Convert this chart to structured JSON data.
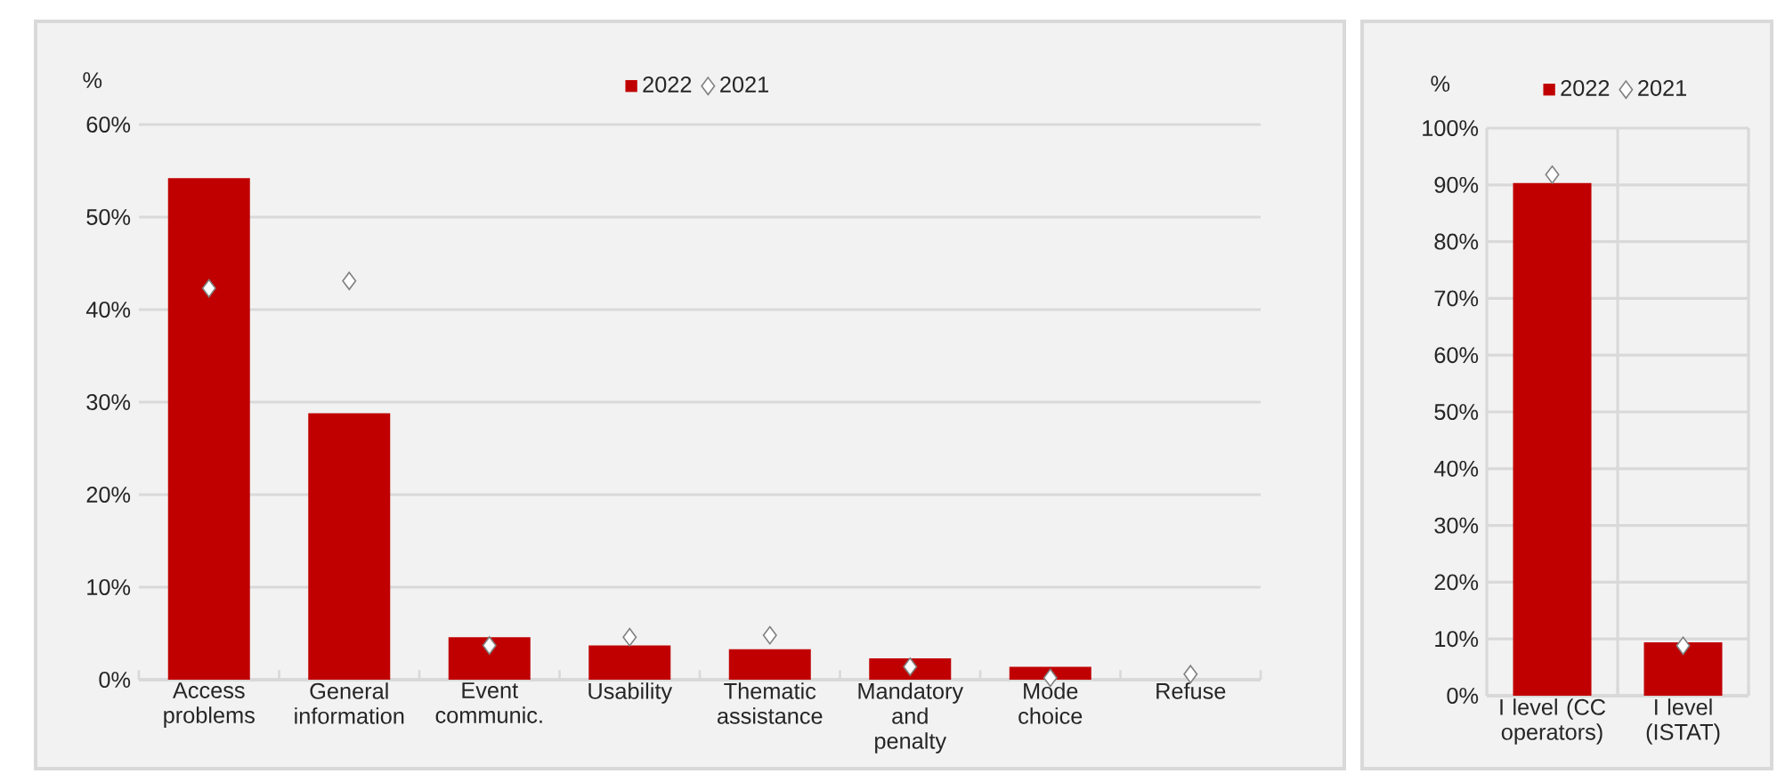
{
  "chart_data": [
    {
      "type": "bar",
      "ylabel": "%",
      "categories": [
        "Access problems",
        "General information",
        "Event communic.",
        "Usability",
        "Thematic assistance",
        "Mandatory and penalty",
        "Mode choice",
        "Refuse"
      ],
      "series": [
        {
          "name": "2022",
          "color": "#c00000",
          "values": [
            54.2,
            28.8,
            4.6,
            3.7,
            3.3,
            2.3,
            1.4,
            0
          ]
        },
        {
          "name": "2021",
          "type": "scatter",
          "color": "#ffffff",
          "values": [
            42.3,
            43.1,
            3.7,
            4.6,
            4.8,
            1.4,
            0.2,
            0.6
          ]
        }
      ],
      "marker": "diamond",
      "ylim": [
        0,
        60
      ],
      "yticks": [
        {
          "value": 0,
          "label": "0%"
        },
        {
          "value": 10,
          "label": "10%"
        },
        {
          "value": 20,
          "label": "20%"
        },
        {
          "value": 30,
          "label": "30%"
        },
        {
          "value": 40,
          "label": "40%"
        },
        {
          "value": 50,
          "label": "50%"
        },
        {
          "value": 60,
          "label": "60%"
        }
      ],
      "grid": "y",
      "legend": "top"
    },
    {
      "type": "bar",
      "ylabel": "%",
      "categories": [
        "I level (CC operators)",
        "I level (ISTAT)"
      ],
      "series": [
        {
          "name": "2022",
          "color": "#c00000",
          "values": [
            90.3,
            9.4
          ]
        },
        {
          "name": "2021",
          "type": "scatter",
          "color": "#ffffff",
          "values": [
            91.8,
            8.8
          ]
        }
      ],
      "marker": "diamond",
      "ylim": [
        0,
        100
      ],
      "yticks": [
        {
          "value": 0,
          "label": "0%"
        },
        {
          "value": 10,
          "label": "10%"
        },
        {
          "value": 20,
          "label": "20%"
        },
        {
          "value": 30,
          "label": "30%"
        },
        {
          "value": 40,
          "label": "40%"
        },
        {
          "value": 50,
          "label": "50%"
        },
        {
          "value": 60,
          "label": "60%"
        },
        {
          "value": 70,
          "label": "70%"
        },
        {
          "value": 80,
          "label": "80%"
        },
        {
          "value": 90,
          "label": "90%"
        },
        {
          "value": 100,
          "label": "100%"
        }
      ],
      "grid": true,
      "legend": "top"
    }
  ]
}
